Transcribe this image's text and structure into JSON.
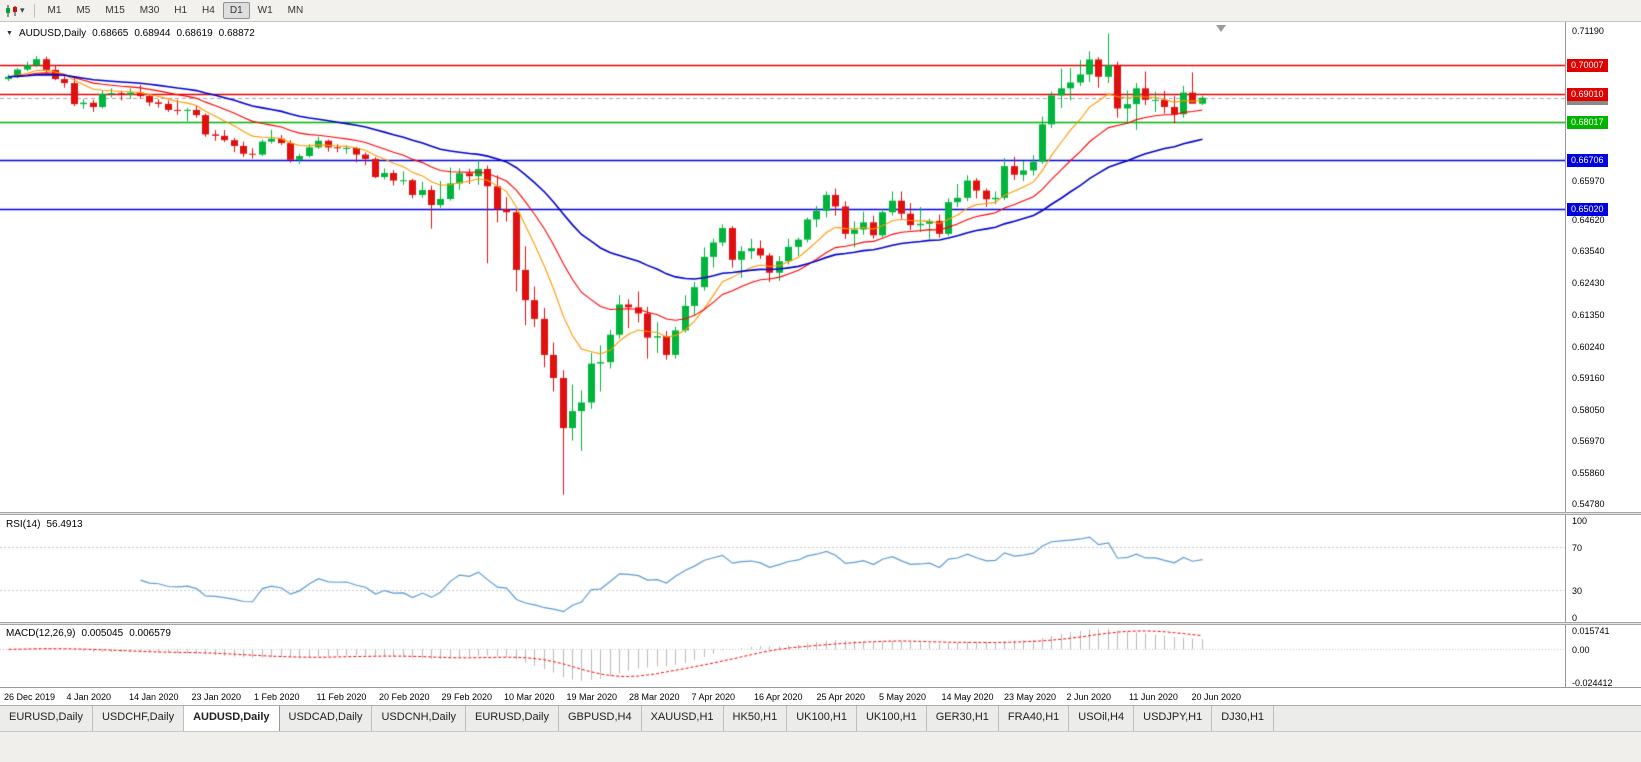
{
  "toolbar": {
    "timeframes": [
      "M1",
      "M5",
      "M15",
      "M30",
      "H1",
      "H4",
      "D1",
      "W1",
      "MN"
    ],
    "active_timeframe": "D1"
  },
  "chart": {
    "symbol_label": "AUDUSD,Daily",
    "open": "0.68665",
    "high": "0.68944",
    "low": "0.68619",
    "close": "0.68872",
    "axis_plain": [
      "0.71190",
      "0.65970",
      "0.64620",
      "0.63540",
      "0.62430",
      "0.61350",
      "0.60240",
      "0.59160",
      "0.58050",
      "0.56970",
      "0.55860",
      "0.54780"
    ],
    "levels": [
      {
        "price": "0.70007",
        "color": "#e00000"
      },
      {
        "price": "0.69010",
        "color": "#e00000"
      },
      {
        "price": "0.68017",
        "color": "#00b400"
      },
      {
        "price": "0.66706",
        "color": "#0000e0"
      },
      {
        "price": "0.65020",
        "color": "#0000e0"
      }
    ],
    "current_price": {
      "price": "0.68872",
      "color": "#8a8a8a"
    }
  },
  "rsi": {
    "name": "RSI(14)",
    "period": 14,
    "value": "56.4913",
    "axis": [
      "100",
      "70",
      "30",
      "0"
    ],
    "levels": [
      70,
      30
    ],
    "color": "#5b9bd5"
  },
  "macd": {
    "name": "MACD(12,26,9)",
    "fast": 12,
    "slow": 26,
    "signal": 9,
    "value_main": "0.005045",
    "value_signal": "0.006579",
    "axis": [
      "0.015741",
      "0.00",
      "-0.024412"
    ],
    "hist_color": "#b8b8b8",
    "signal_color": "#ff0000"
  },
  "chart_data": {
    "type": "candlestick",
    "symbol": "AUDUSD",
    "timeframe": "Daily",
    "ohlc_current": {
      "open": 0.68665,
      "high": 0.68944,
      "low": 0.68619,
      "close": 0.68872
    },
    "ylim": [
      0.545,
      0.715
    ],
    "x_labels": [
      "26 Dec 2019",
      "4 Jan 2020",
      "14 Jan 2020",
      "23 Jan 2020",
      "1 Feb 2020",
      "11 Feb 2020",
      "20 Feb 2020",
      "29 Feb 2020",
      "10 Mar 2020",
      "19 Mar 2020",
      "28 Mar 2020",
      "7 Apr 2020",
      "16 Apr 2020",
      "25 Apr 2020",
      "5 May 2020",
      "14 May 2020",
      "23 May 2020",
      "2 Jun 2020",
      "11 Jun 2020",
      "20 Jun 2020"
    ],
    "colors": {
      "up": "#00b43c",
      "down": "#e01010"
    },
    "overlays": {
      "moving_averages": [
        {
          "type": "ema",
          "period": 9,
          "color": "#ff9900"
        },
        {
          "type": "ema",
          "period": 18,
          "color": "#ff0000"
        },
        {
          "type": "ema",
          "period": 36,
          "color": "#0000cc"
        }
      ],
      "horizontal_lines": [
        {
          "price": 0.70007,
          "color": "#e00000"
        },
        {
          "price": 0.6901,
          "color": "#e00000"
        },
        {
          "price": 0.68017,
          "color": "#00b400"
        },
        {
          "price": 0.66706,
          "color": "#0000e0"
        },
        {
          "price": 0.6502,
          "color": "#0000e0"
        }
      ]
    },
    "candles": [
      [
        0.6952,
        0.6968,
        0.6945,
        0.696
      ],
      [
        0.696,
        0.699,
        0.6955,
        0.6985
      ],
      [
        0.6985,
        0.7012,
        0.698,
        0.7
      ],
      [
        0.7,
        0.7032,
        0.6993,
        0.7021
      ],
      [
        0.7021,
        0.703,
        0.6975,
        0.6984
      ],
      [
        0.6984,
        0.7,
        0.6948,
        0.6952
      ],
      [
        0.6952,
        0.6962,
        0.6922,
        0.6938
      ],
      [
        0.6938,
        0.6955,
        0.6858,
        0.6865
      ],
      [
        0.6865,
        0.6882,
        0.6849,
        0.687
      ],
      [
        0.687,
        0.688,
        0.6838,
        0.6855
      ],
      [
        0.6855,
        0.6912,
        0.685,
        0.69
      ],
      [
        0.69,
        0.692,
        0.6888,
        0.6903
      ],
      [
        0.6903,
        0.6912,
        0.6878,
        0.6898
      ],
      [
        0.6898,
        0.692,
        0.6883,
        0.6905
      ],
      [
        0.6905,
        0.6932,
        0.6885,
        0.6893
      ],
      [
        0.6893,
        0.69,
        0.6858,
        0.6871
      ],
      [
        0.6871,
        0.6882,
        0.6853,
        0.6866
      ],
      [
        0.6866,
        0.6878,
        0.6838,
        0.6845
      ],
      [
        0.6845,
        0.688,
        0.6828,
        0.6842
      ],
      [
        0.6842,
        0.6852,
        0.6805,
        0.6845
      ],
      [
        0.6845,
        0.6862,
        0.6818,
        0.6827
      ],
      [
        0.6827,
        0.6832,
        0.6752,
        0.676
      ],
      [
        0.676,
        0.6775,
        0.6738,
        0.6755
      ],
      [
        0.6755,
        0.6775,
        0.6733,
        0.674
      ],
      [
        0.674,
        0.6748,
        0.6698,
        0.672
      ],
      [
        0.672,
        0.6735,
        0.6682,
        0.6693
      ],
      [
        0.6693,
        0.6712,
        0.6676,
        0.669
      ],
      [
        0.669,
        0.6742,
        0.6685,
        0.6735
      ],
      [
        0.6735,
        0.6776,
        0.6728,
        0.6745
      ],
      [
        0.6745,
        0.6758,
        0.6723,
        0.673
      ],
      [
        0.673,
        0.674,
        0.6662,
        0.6672
      ],
      [
        0.6672,
        0.6692,
        0.6658,
        0.6685
      ],
      [
        0.6685,
        0.6726,
        0.668,
        0.6715
      ],
      [
        0.6715,
        0.6752,
        0.671,
        0.6738
      ],
      [
        0.6738,
        0.6742,
        0.67,
        0.6715
      ],
      [
        0.6715,
        0.6726,
        0.6698,
        0.6712
      ],
      [
        0.6712,
        0.6722,
        0.6693,
        0.6713
      ],
      [
        0.6713,
        0.6716,
        0.6663,
        0.669
      ],
      [
        0.669,
        0.6697,
        0.6653,
        0.6675
      ],
      [
        0.6675,
        0.6681,
        0.6608,
        0.6612
      ],
      [
        0.6612,
        0.6642,
        0.6604,
        0.6626
      ],
      [
        0.6626,
        0.6636,
        0.6583,
        0.66
      ],
      [
        0.66,
        0.6632,
        0.6585,
        0.6601
      ],
      [
        0.6601,
        0.6606,
        0.6538,
        0.655
      ],
      [
        0.655,
        0.6596,
        0.654,
        0.6567
      ],
      [
        0.6567,
        0.6582,
        0.6433,
        0.6515
      ],
      [
        0.6515,
        0.6598,
        0.6505,
        0.6536
      ],
      [
        0.6536,
        0.6645,
        0.653,
        0.659
      ],
      [
        0.659,
        0.6642,
        0.6568,
        0.6625
      ],
      [
        0.6625,
        0.6641,
        0.6588,
        0.6615
      ],
      [
        0.6615,
        0.6672,
        0.6585,
        0.664
      ],
      [
        0.664,
        0.6652,
        0.6313,
        0.658
      ],
      [
        0.658,
        0.6618,
        0.6455,
        0.65
      ],
      [
        0.65,
        0.6542,
        0.6458,
        0.649
      ],
      [
        0.649,
        0.6502,
        0.6215,
        0.629
      ],
      [
        0.629,
        0.6372,
        0.6098,
        0.6185
      ],
      [
        0.6185,
        0.6232,
        0.6092,
        0.612
      ],
      [
        0.612,
        0.6158,
        0.5952,
        0.5995
      ],
      [
        0.5995,
        0.6038,
        0.5868,
        0.5915
      ],
      [
        0.5915,
        0.5942,
        0.551,
        0.5741
      ],
      [
        0.5741,
        0.5892,
        0.5698,
        0.58
      ],
      [
        0.58,
        0.5872,
        0.5662,
        0.583
      ],
      [
        0.583,
        0.6002,
        0.5808,
        0.5965
      ],
      [
        0.5965,
        0.6028,
        0.5868,
        0.597
      ],
      [
        0.597,
        0.6082,
        0.5948,
        0.6065
      ],
      [
        0.6065,
        0.6202,
        0.6052,
        0.617
      ],
      [
        0.617,
        0.6188,
        0.6088,
        0.616
      ],
      [
        0.616,
        0.6215,
        0.6108,
        0.6139
      ],
      [
        0.6139,
        0.6162,
        0.5982,
        0.6055
      ],
      [
        0.6055,
        0.6108,
        0.6002,
        0.606
      ],
      [
        0.606,
        0.6078,
        0.5978,
        0.5995
      ],
      [
        0.5995,
        0.6092,
        0.5982,
        0.608
      ],
      [
        0.608,
        0.6202,
        0.6072,
        0.6165
      ],
      [
        0.6165,
        0.6248,
        0.6132,
        0.623
      ],
      [
        0.623,
        0.6368,
        0.6218,
        0.6335
      ],
      [
        0.6335,
        0.6398,
        0.6298,
        0.6385
      ],
      [
        0.6385,
        0.6448,
        0.6372,
        0.6435
      ],
      [
        0.6435,
        0.6442,
        0.6298,
        0.6325
      ],
      [
        0.6325,
        0.6372,
        0.6262,
        0.6355
      ],
      [
        0.6355,
        0.6398,
        0.6328,
        0.6365
      ],
      [
        0.6365,
        0.6392,
        0.6328,
        0.634
      ],
      [
        0.634,
        0.6348,
        0.6248,
        0.628
      ],
      [
        0.628,
        0.6338,
        0.6252,
        0.632
      ],
      [
        0.632,
        0.6398,
        0.6308,
        0.637
      ],
      [
        0.637,
        0.6402,
        0.6338,
        0.6395
      ],
      [
        0.6395,
        0.6472,
        0.6385,
        0.6465
      ],
      [
        0.6465,
        0.6512,
        0.6438,
        0.6495
      ],
      [
        0.6495,
        0.6562,
        0.6472,
        0.655
      ],
      [
        0.655,
        0.6572,
        0.6478,
        0.651
      ],
      [
        0.651,
        0.6528,
        0.6398,
        0.6415
      ],
      [
        0.6415,
        0.6458,
        0.6368,
        0.643
      ],
      [
        0.643,
        0.6492,
        0.6412,
        0.6455
      ],
      [
        0.6455,
        0.6478,
        0.6398,
        0.641
      ],
      [
        0.641,
        0.6502,
        0.6402,
        0.649
      ],
      [
        0.649,
        0.6562,
        0.6478,
        0.653
      ],
      [
        0.653,
        0.6562,
        0.6468,
        0.6485
      ],
      [
        0.6485,
        0.6522,
        0.6428,
        0.6445
      ],
      [
        0.6445,
        0.6508,
        0.6422,
        0.645
      ],
      [
        0.645,
        0.6468,
        0.6398,
        0.646
      ],
      [
        0.646,
        0.6482,
        0.6402,
        0.6415
      ],
      [
        0.6415,
        0.6538,
        0.6408,
        0.6525
      ],
      [
        0.6525,
        0.6588,
        0.6508,
        0.654
      ],
      [
        0.654,
        0.6618,
        0.6528,
        0.66
      ],
      [
        0.66,
        0.6608,
        0.6538,
        0.6565
      ],
      [
        0.6565,
        0.6572,
        0.6508,
        0.6535
      ],
      [
        0.6535,
        0.6562,
        0.6518,
        0.654
      ],
      [
        0.654,
        0.6678,
        0.6532,
        0.665
      ],
      [
        0.665,
        0.6682,
        0.6602,
        0.662
      ],
      [
        0.662,
        0.6668,
        0.6598,
        0.6635
      ],
      [
        0.6635,
        0.6688,
        0.6618,
        0.6665
      ],
      [
        0.6665,
        0.6822,
        0.6658,
        0.6795
      ],
      [
        0.6795,
        0.6908,
        0.6782,
        0.6895
      ],
      [
        0.6895,
        0.6988,
        0.6852,
        0.692
      ],
      [
        0.692,
        0.699,
        0.6878,
        0.694
      ],
      [
        0.694,
        0.7018,
        0.6928,
        0.6968
      ],
      [
        0.6968,
        0.7048,
        0.6942,
        0.702
      ],
      [
        0.702,
        0.7028,
        0.6922,
        0.696
      ],
      [
        0.696,
        0.711,
        0.6938,
        0.7
      ],
      [
        0.7,
        0.7012,
        0.6818,
        0.685
      ],
      [
        0.685,
        0.6912,
        0.6798,
        0.6865
      ],
      [
        0.6865,
        0.6938,
        0.6776,
        0.692
      ],
      [
        0.692,
        0.6978,
        0.6862,
        0.688
      ],
      [
        0.688,
        0.6908,
        0.6838,
        0.688
      ],
      [
        0.688,
        0.6912,
        0.6832,
        0.6855
      ],
      [
        0.6855,
        0.6892,
        0.6798,
        0.683
      ],
      [
        0.683,
        0.6928,
        0.6818,
        0.6905
      ],
      [
        0.6905,
        0.6975,
        0.6888,
        0.68665
      ],
      [
        0.68665,
        0.68944,
        0.68619,
        0.68872
      ]
    ]
  },
  "tabs": [
    {
      "label": "EURUSD,Daily",
      "active": false
    },
    {
      "label": "USDCHF,Daily",
      "active": false
    },
    {
      "label": "AUDUSD,Daily",
      "active": true
    },
    {
      "label": "USDCAD,Daily",
      "active": false
    },
    {
      "label": "USDCNH,Daily",
      "active": false
    },
    {
      "label": "EURUSD,Daily",
      "active": false
    },
    {
      "label": "GBPUSD,H4",
      "active": false
    },
    {
      "label": "XAUUSD,H1",
      "active": false
    },
    {
      "label": "HK50,H1",
      "active": false
    },
    {
      "label": "UK100,H1",
      "active": false
    },
    {
      "label": "UK100,H1",
      "active": false
    },
    {
      "label": "GER30,H1",
      "active": false
    },
    {
      "label": "FRA40,H1",
      "active": false
    },
    {
      "label": "USOil,H4",
      "active": false
    },
    {
      "label": "USDJPY,H1",
      "active": false
    },
    {
      "label": "DJ30,H1",
      "active": false
    }
  ]
}
